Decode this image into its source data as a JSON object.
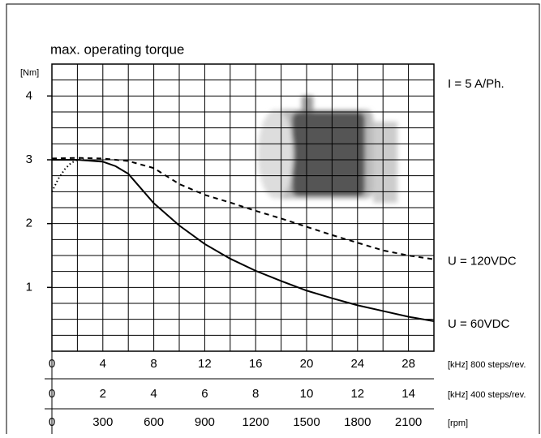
{
  "chart_data": {
    "type": "line",
    "title": "max. operating torque",
    "ylabel": "[Nm]",
    "annotation": "I = 5 A/Ph.",
    "ylim": [
      0,
      4.5
    ],
    "yticks": [
      1,
      2,
      3,
      4
    ],
    "ygrid": [
      0.25,
      0.5,
      0.75,
      1,
      1.25,
      1.5,
      1.75,
      2,
      2.25,
      2.5,
      2.75,
      3,
      3.25,
      3.5,
      3.75,
      4,
      4.25
    ],
    "xgrid": [
      2,
      4,
      6,
      8,
      10,
      12,
      14,
      16,
      18,
      20,
      22,
      24,
      26,
      28
    ],
    "x_axes": [
      {
        "label": "[kHz] 800 steps/rev.",
        "lim": [
          0,
          30
        ],
        "ticks": [
          0,
          4,
          8,
          12,
          16,
          20,
          24,
          28
        ]
      },
      {
        "label": "[kHz] 400 steps/rev.",
        "lim": [
          0,
          15
        ],
        "ticks": [
          0,
          2,
          4,
          6,
          8,
          10,
          12,
          14
        ]
      },
      {
        "label": "[rpm]",
        "lim": [
          0,
          2250
        ],
        "ticks": [
          0,
          300,
          600,
          900,
          1200,
          1500,
          1800,
          2100
        ]
      }
    ],
    "x": [
      0,
      2,
      4,
      5,
      6,
      8,
      10,
      12,
      14,
      16,
      18,
      20,
      22,
      24,
      26,
      28,
      30
    ],
    "series": [
      {
        "name": "U = 120VDC",
        "color": "#000000",
        "dash": "6,5",
        "values": [
          3.02,
          3.03,
          3.02,
          3.0,
          2.98,
          2.87,
          2.62,
          2.45,
          2.33,
          2.2,
          2.08,
          1.95,
          1.82,
          1.7,
          1.58,
          1.5,
          1.44
        ]
      },
      {
        "name": "U = 60VDC",
        "color": "#000000",
        "dash": "none",
        "values": [
          3.0,
          3.0,
          2.97,
          2.9,
          2.78,
          2.32,
          1.97,
          1.68,
          1.45,
          1.26,
          1.1,
          0.95,
          0.83,
          0.72,
          0.63,
          0.54,
          0.47
        ]
      },
      {
        "color": "#000000",
        "dash": "1.5,3",
        "x": [
          0,
          0.5,
          1,
          1.5,
          2,
          2.5
        ],
        "values": [
          2.5,
          2.7,
          2.85,
          2.95,
          3.0,
          3.02
        ]
      }
    ]
  }
}
